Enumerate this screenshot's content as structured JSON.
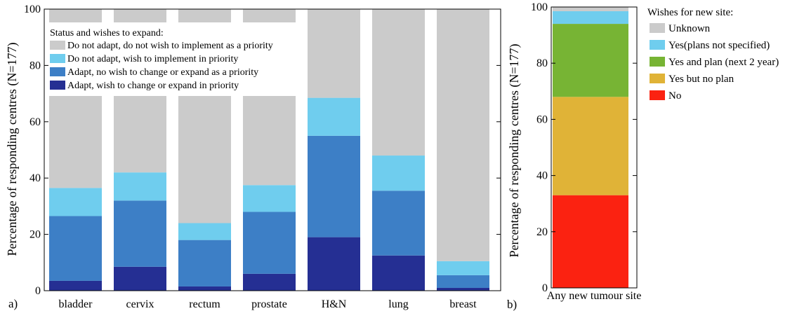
{
  "colors": {
    "grey": "#cbcbcb",
    "lightblue": "#6fcdee",
    "midblue": "#3d7fc6",
    "darkblue": "#252f93",
    "green": "#77b434",
    "gold": "#e0b337",
    "red": "#fb2211"
  },
  "chart_data": [
    {
      "panel_label": "a)",
      "type": "bar",
      "stacked": true,
      "ylabel": "Percentage of responding centres (N=177)",
      "ylim": [
        0,
        100
      ],
      "yticks": [
        0,
        20,
        40,
        60,
        80,
        100
      ],
      "categories": [
        "bladder",
        "cervix",
        "rectum",
        "prostate",
        "H&N",
        "lung",
        "breast"
      ],
      "legend": {
        "title": "Status and wishes to expand:",
        "placement": "top-left"
      },
      "series": [
        {
          "name": "Adapt, wish to change or expand in priority",
          "color": "darkblue",
          "values": [
            3.5,
            8.5,
            1.5,
            6,
            19,
            12.5,
            1
          ]
        },
        {
          "name": "Adapt, no wish to change or expand as a priority",
          "color": "midblue",
          "values": [
            23,
            23.5,
            16.5,
            22,
            36,
            23,
            4.5
          ]
        },
        {
          "name": "Do not adapt, wish to implement in priority",
          "color": "lightblue",
          "values": [
            10,
            10,
            6,
            9.5,
            13.5,
            12.5,
            5
          ]
        },
        {
          "name": "Do not adapt, do not wish to implement as a priority",
          "color": "grey",
          "values": [
            63.5,
            58,
            76,
            62.5,
            31.5,
            52,
            89.5
          ]
        }
      ]
    },
    {
      "panel_label": "b)",
      "type": "bar",
      "stacked": true,
      "ylabel": "Percentage of responding centres (N=177)",
      "ylim": [
        0,
        100
      ],
      "yticks": [
        0,
        20,
        40,
        60,
        80,
        100
      ],
      "categories": [
        "Any new tumour site"
      ],
      "legend": {
        "title": "Wishes for new site:",
        "placement": "right"
      },
      "series": [
        {
          "name": "No",
          "color": "red",
          "values": [
            33
          ]
        },
        {
          "name": "Yes but no plan",
          "color": "gold",
          "values": [
            35
          ]
        },
        {
          "name": "Yes and plan (next 2 year)",
          "color": "green",
          "values": [
            26
          ]
        },
        {
          "name": "Yes(plans not specified)",
          "color": "lightblue",
          "values": [
            4.5
          ]
        },
        {
          "name": "Unknown",
          "color": "grey",
          "values": [
            1.5
          ]
        }
      ]
    }
  ]
}
